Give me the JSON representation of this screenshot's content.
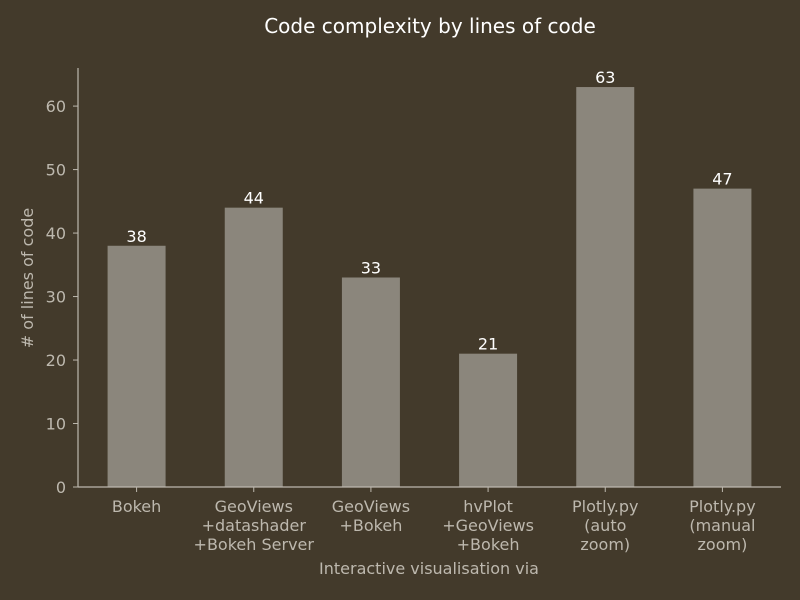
{
  "chart_data": {
    "type": "bar",
    "title": "Code complexity by lines of code",
    "xlabel": "Interactive visualisation via",
    "ylabel": "# of lines of code",
    "categories": [
      [
        "Bokeh"
      ],
      [
        "GeoViews",
        "+datashader",
        "+Bokeh Server"
      ],
      [
        "GeoViews",
        "+Bokeh"
      ],
      [
        "hvPlot",
        "+GeoViews",
        "+Bokeh"
      ],
      [
        "Plotly.py",
        "(auto",
        "zoom)"
      ],
      [
        "Plotly.py",
        "(manual",
        "zoom)"
      ]
    ],
    "values": [
      38,
      44,
      33,
      21,
      63,
      47
    ],
    "data_labels": [
      "38",
      "44",
      "33",
      "21",
      "63",
      "47"
    ],
    "yticks": [
      0,
      10,
      20,
      30,
      40,
      50,
      60
    ],
    "ylim": [
      0,
      66
    ],
    "grid": false,
    "colors": {
      "background": "#433a2b",
      "bar": "#8b867c",
      "text": "#bdb8ae",
      "label": "#ffffff"
    }
  }
}
